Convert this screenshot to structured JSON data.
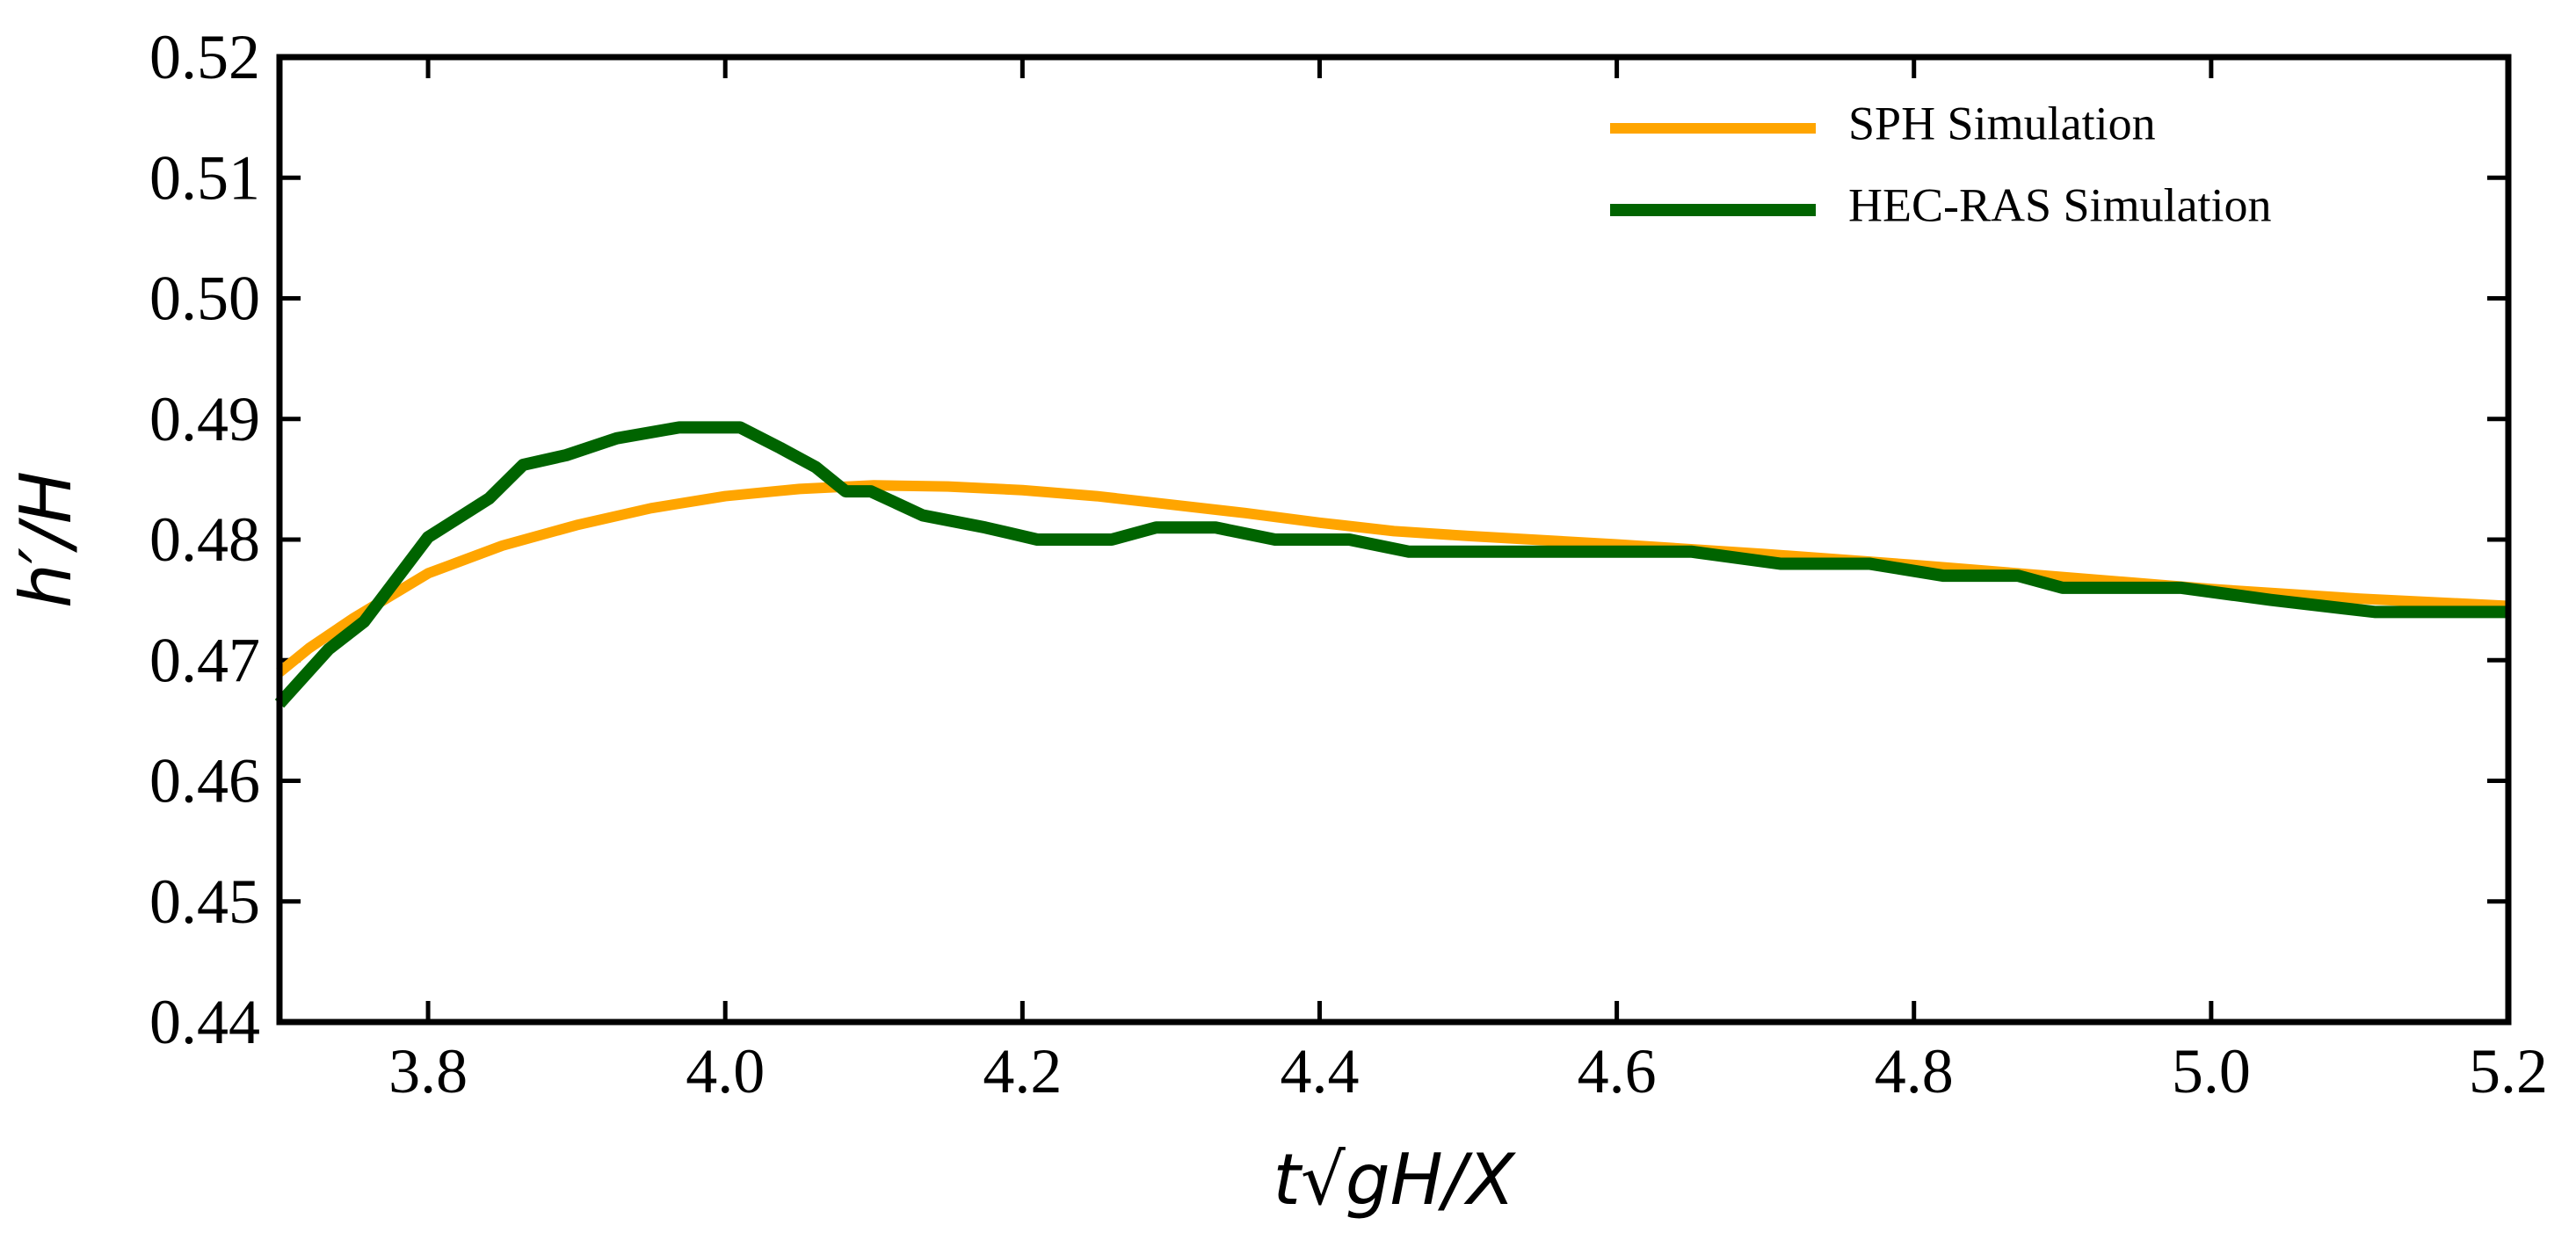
{
  "chart_data": {
    "type": "line",
    "xlabel": "t√gH/X",
    "ylabel": "h′/H",
    "xlim": [
      3.7,
      5.2
    ],
    "xticks": [
      3.8,
      {
        "value": 4,
        "label": "4.0"
      },
      4.2,
      4.4,
      4.6,
      4.8,
      {
        "value": 5,
        "label": "5.0"
      },
      5.2
    ],
    "ylim": [
      0.44,
      0.52
    ],
    "yticks": [
      0.44,
      0.45,
      0.46,
      0.47,
      0.48,
      0.49,
      {
        "value": 0.5,
        "label": "0.50"
      },
      0.51,
      0.52
    ],
    "legend": "upper right",
    "series": [
      {
        "name": "SPH Simulation",
        "color": "#ffa500",
        "x": [
          3.7,
          3.72,
          3.75,
          3.8,
          3.85,
          3.9,
          3.95,
          4.0,
          4.05,
          4.1,
          4.15,
          4.2,
          4.25,
          4.3,
          4.35,
          4.4,
          4.45,
          4.5,
          4.6,
          4.7,
          4.8,
          4.9,
          5.0,
          5.1,
          5.2
        ],
        "values": [
          0.469,
          0.471,
          0.4735,
          0.4772,
          0.4795,
          0.4812,
          0.4826,
          0.4836,
          0.4842,
          0.4845,
          0.4844,
          0.4841,
          0.4836,
          0.4829,
          0.4822,
          0.4814,
          0.4807,
          0.4803,
          0.4796,
          0.4788,
          0.4779,
          0.4769,
          0.4759,
          0.4751,
          0.4745
        ]
      },
      {
        "name": "HEC-RAS Simulation",
        "color": "#006400",
        "x": [
          3.7,
          3.733,
          3.757,
          3.8,
          3.841,
          3.864,
          3.893,
          3.927,
          3.969,
          4.01,
          4.037,
          4.061,
          4.081,
          4.098,
          4.133,
          4.175,
          4.21,
          4.26,
          4.29,
          4.33,
          4.37,
          4.42,
          4.46,
          4.65,
          4.71,
          4.77,
          4.82,
          4.87,
          4.9,
          4.98,
          5.04,
          5.11,
          5.2
        ],
        "values": [
          0.4664,
          0.4709,
          0.4732,
          0.4802,
          0.4834,
          0.4862,
          0.487,
          0.4884,
          0.4893,
          0.4893,
          0.4876,
          0.486,
          0.484,
          0.484,
          0.482,
          0.481,
          0.48,
          0.48,
          0.481,
          0.481,
          0.48,
          0.48,
          0.479,
          0.479,
          0.478,
          0.478,
          0.477,
          0.477,
          0.476,
          0.476,
          0.475,
          0.474,
          0.474
        ]
      }
    ]
  }
}
